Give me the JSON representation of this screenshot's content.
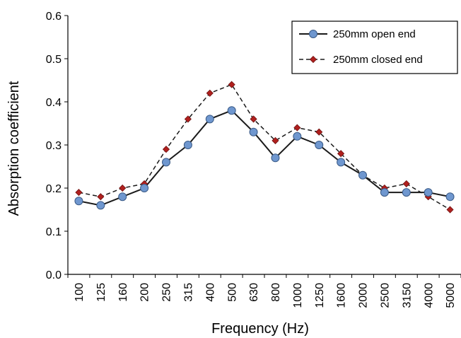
{
  "chart_data": {
    "type": "line",
    "title": "",
    "xlabel": "Frequency (Hz)",
    "ylabel": "Absorption coefficient",
    "categories": [
      "100",
      "125",
      "160",
      "200",
      "250",
      "315",
      "400",
      "500",
      "630",
      "800",
      "1000",
      "1250",
      "1600",
      "2000",
      "2500",
      "3150",
      "4000",
      "5000"
    ],
    "ylim": [
      0,
      0.6
    ],
    "yticks": [
      "0.0",
      "0.1",
      "0.2",
      "0.3",
      "0.4",
      "0.5",
      "0.6"
    ],
    "grid": false,
    "legend_position": "top-right",
    "series": [
      {
        "name": "250mm open end",
        "style": "solid",
        "marker": "circle",
        "line_color": "#1a1a1a",
        "marker_color": "#6f97cf",
        "values": [
          0.17,
          0.16,
          0.18,
          0.2,
          0.26,
          0.3,
          0.36,
          0.38,
          0.33,
          0.27,
          0.32,
          0.3,
          0.26,
          0.23,
          0.19,
          0.19,
          0.19,
          0.18
        ]
      },
      {
        "name": "250mm closed end",
        "style": "dashed",
        "marker": "diamond",
        "line_color": "#1a1a1a",
        "marker_color": "#b0201e",
        "values": [
          0.19,
          0.18,
          0.2,
          0.21,
          0.29,
          0.36,
          0.42,
          0.44,
          0.36,
          0.31,
          0.34,
          0.33,
          0.28,
          0.23,
          0.2,
          0.21,
          0.18,
          0.15
        ]
      }
    ]
  }
}
